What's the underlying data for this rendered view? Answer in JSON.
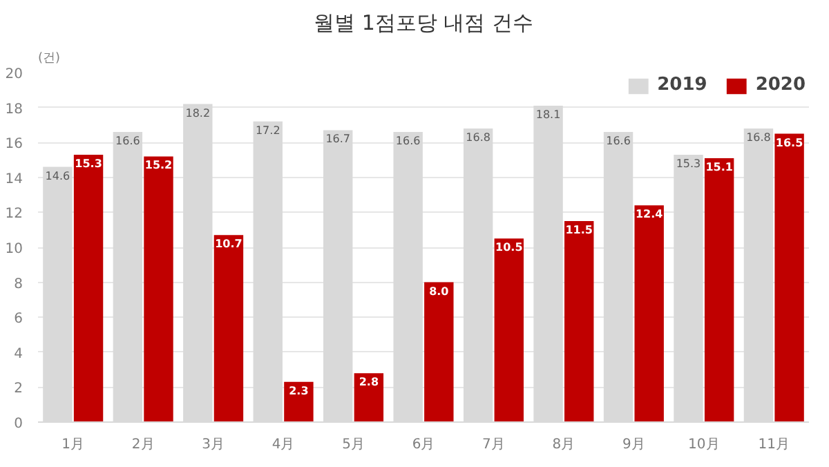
{
  "chart_data": {
    "type": "bar",
    "title": "월별 1점포당 내점 건수",
    "ylabel": "(건)",
    "categories": [
      "1月",
      "2月",
      "3月",
      "4月",
      "5月",
      "6月",
      "7月",
      "8月",
      "9月",
      "10月",
      "11月"
    ],
    "series": [
      {
        "name": "2019",
        "color": "#d9d9d9",
        "values": [
          14.6,
          16.6,
          18.2,
          17.2,
          16.7,
          16.6,
          16.8,
          18.1,
          16.6,
          15.3,
          16.8
        ],
        "value_labels": [
          "14.6",
          "16.6",
          "18.2",
          "17.2",
          "16.7",
          "16.6",
          "16.8",
          "18.1",
          "16.6",
          "15.3",
          "16.8"
        ]
      },
      {
        "name": "2020",
        "color": "#c00000",
        "values": [
          15.3,
          15.2,
          10.7,
          2.3,
          2.8,
          8.0,
          10.5,
          11.5,
          12.4,
          15.1,
          16.5
        ],
        "value_labels": [
          "15.3",
          "15.2",
          "10.7",
          "2.3",
          "2.8",
          "8.0",
          "10.5",
          "11.5",
          "12.4",
          "15.1",
          "16.5"
        ]
      }
    ],
    "ylim": [
      0,
      20
    ],
    "yticks": [
      0,
      2,
      4,
      6,
      8,
      10,
      12,
      14,
      16,
      18,
      20
    ],
    "grid": "y",
    "legend": "top right"
  }
}
